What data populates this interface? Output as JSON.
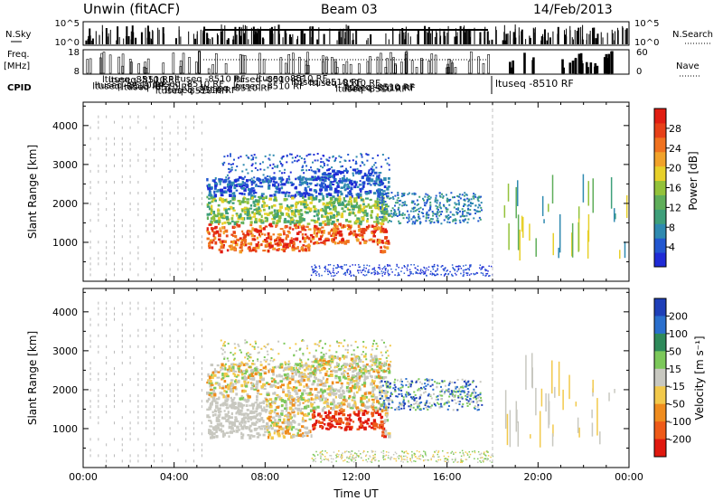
{
  "header": {
    "station": "Unwin (fitACF)",
    "beam": "Beam 03",
    "date": "14/Feb/2013"
  },
  "side_labels": {
    "nsky": "N.Sky",
    "freq_line1": "Freq.",
    "freq_line2": "[MHz]",
    "cpid": "CPID",
    "nsearch": "N.Search",
    "nave": "Nave"
  },
  "cpid_text": "ltuseq -8510 RF",
  "chart_data": [
    {
      "type": "bar",
      "name": "noise-panel",
      "left_ticks": [
        "10^5",
        "10^0"
      ],
      "right_ticks": [
        "10^5",
        "10^0"
      ],
      "left_label": "N.Sky",
      "right_label": "N.Search"
    },
    {
      "type": "bar",
      "name": "freq-nave-panel",
      "left_ticks": [
        "18",
        "8"
      ],
      "right_ticks": [
        "60",
        "0"
      ],
      "left_label": "Freq. [MHz]",
      "right_label": "Nave"
    },
    {
      "type": "heatmap",
      "name": "power-panel",
      "ylabel": "Slant Range [km]",
      "ylim": [
        0,
        4600
      ],
      "yticks": [
        "1000",
        "2000",
        "3000",
        "4000"
      ],
      "xlim": [
        0,
        24
      ],
      "colorbar_label": "Power [dB]",
      "colorbar_ticks": [
        "4",
        "8",
        "12",
        "16",
        "20",
        "24",
        "28"
      ],
      "colorbar_colors": [
        "#1f2bd6",
        "#2257d0",
        "#2f8ab0",
        "#3e9f7a",
        "#5fae5a",
        "#93c23a",
        "#e7d02a",
        "#f1a22a",
        "#f0721f",
        "#e74018",
        "#e11d12"
      ]
    },
    {
      "type": "heatmap",
      "name": "velocity-panel",
      "ylabel": "Slant Range [km]",
      "ylim": [
        0,
        4600
      ],
      "yticks": [
        "1000",
        "2000",
        "3000",
        "4000"
      ],
      "xlim": [
        0,
        24
      ],
      "xlabel": "Time UT",
      "xticks": [
        "00:00",
        "04:00",
        "08:00",
        "12:00",
        "16:00",
        "20:00",
        "00:00"
      ],
      "colorbar_label": "Velocity [m s⁻¹]",
      "colorbar_ticks": [
        "200",
        "100",
        "50",
        "15",
        "-15",
        "-50",
        "-100",
        "-200"
      ],
      "colorbar_colors": [
        "#1e3fb8",
        "#2a6fcd",
        "#2e8a5a",
        "#7cc85a",
        "#c8c8c0",
        "#f2c94b",
        "#ef8c1e",
        "#ee5a18",
        "#e0190f"
      ]
    }
  ]
}
